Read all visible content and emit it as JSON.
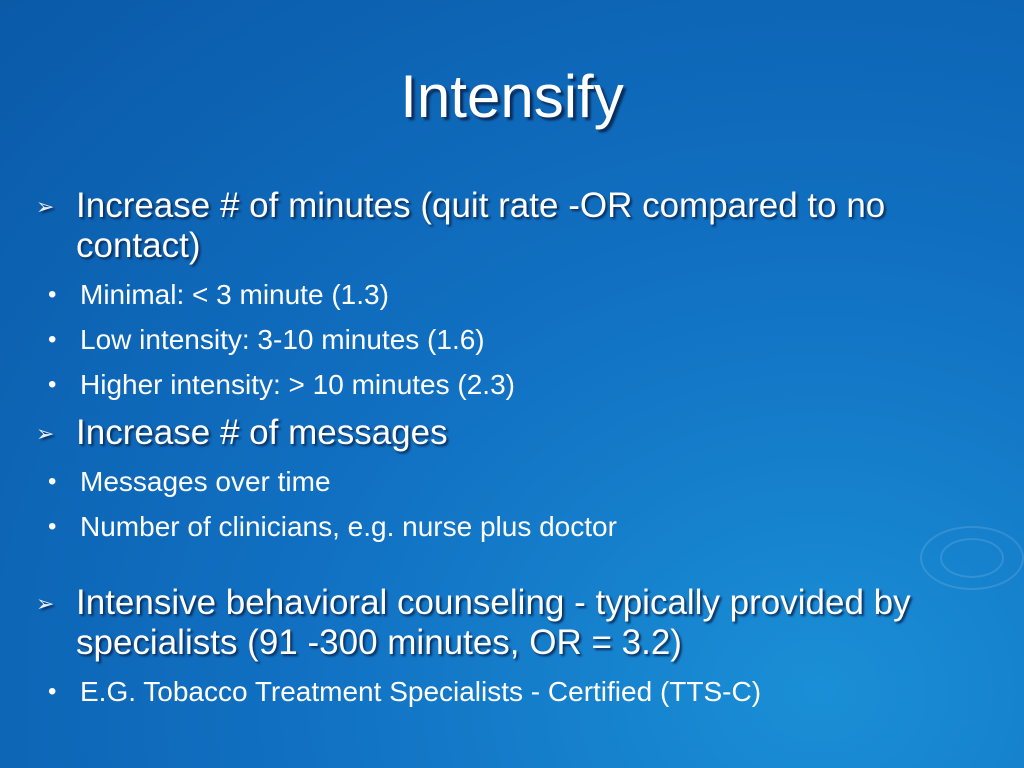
{
  "slide": {
    "title": "Intensify",
    "bullets": [
      {
        "text": "Increase # of minutes (quit rate -OR compared to no contact)",
        "sub": [
          "Minimal:  < 3 minute (1.3)",
          "Low intensity: 3-10 minutes (1.6)",
          "Higher intensity: > 10 minutes (2.3)"
        ]
      },
      {
        "text": "Increase # of messages",
        "sub": [
          "Messages over time",
          "Number of clinicians, e.g. nurse plus doctor"
        ]
      },
      {
        "text": "Intensive behavioral counseling - typically provided by specialists (91 -300 minutes, OR = 3.2)",
        "sub": [
          "E.G. Tobacco Treatment Specialists - Certified (TTS-C)"
        ]
      }
    ]
  }
}
